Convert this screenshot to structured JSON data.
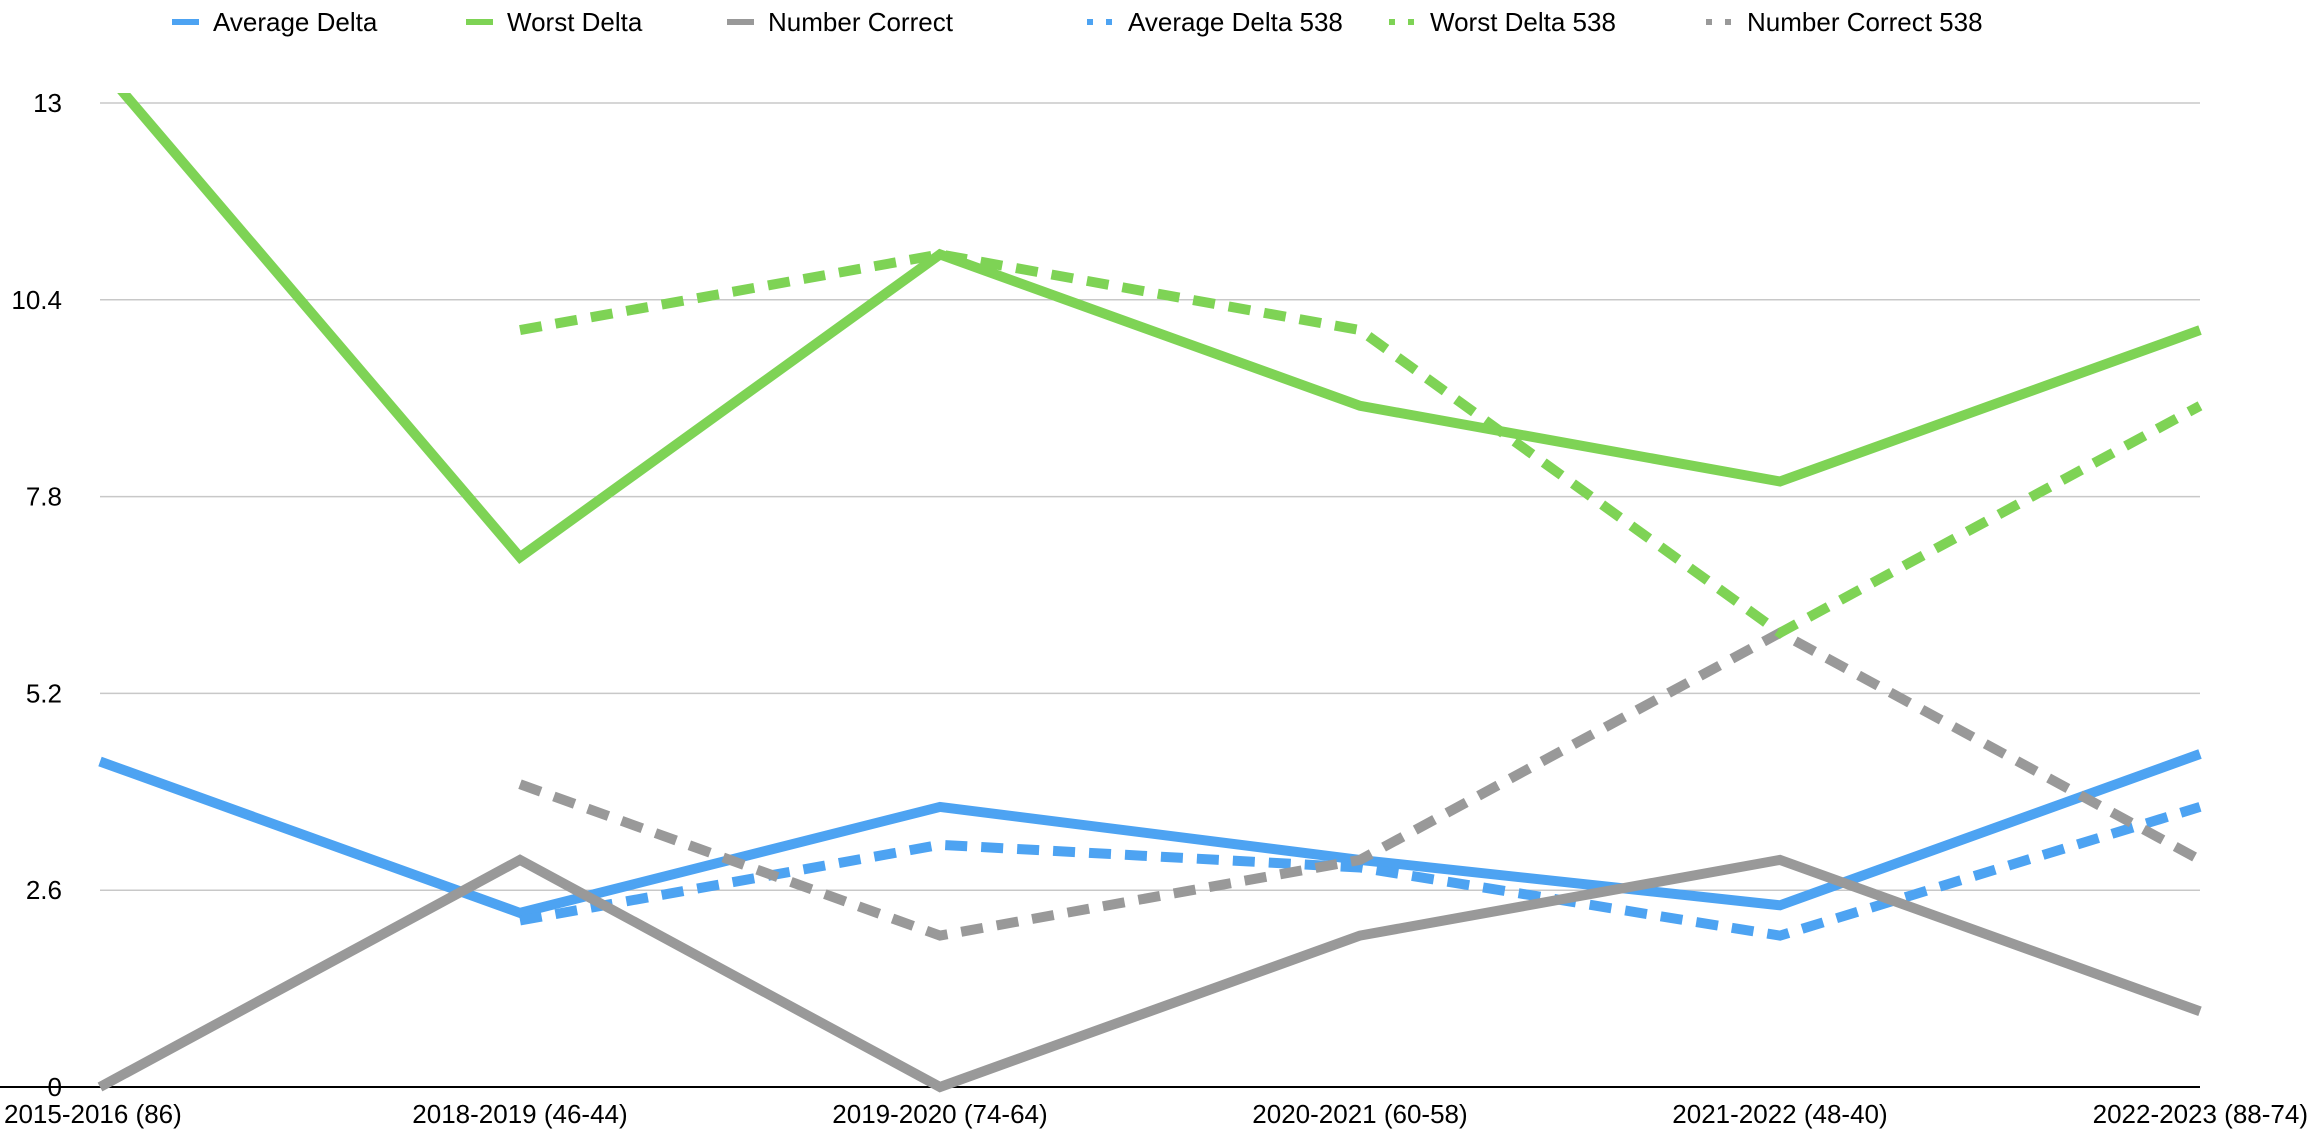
{
  "chart_data": {
    "type": "line",
    "title": "",
    "xlabel": "",
    "ylabel": "",
    "categories": [
      "2015-2016 (86)",
      "2018-2019 (46-44)",
      "2019-2020 (74-64)",
      "2020-2021 (60-58)",
      "2021-2022 (48-40)",
      "2022-2023 (88-74)"
    ],
    "ylim": [
      0,
      13
    ],
    "yticks": [
      "0",
      "2.6",
      "5.2",
      "7.8",
      "10.4",
      "13"
    ],
    "grid": true,
    "legend_position": "top",
    "series": [
      {
        "name": "Average Delta",
        "style": "solid",
        "color": "#4DA3F2",
        "values": [
          4.3,
          2.3,
          3.7,
          3.0,
          2.4,
          4.4
        ]
      },
      {
        "name": "Worst Delta",
        "style": "solid",
        "color": "#7ED355",
        "values": [
          13.5,
          7.0,
          11.0,
          9.0,
          8.0,
          10.0
        ]
      },
      {
        "name": "Number Correct",
        "style": "solid",
        "color": "#999999",
        "values": [
          0,
          3,
          0,
          2,
          3,
          1
        ]
      },
      {
        "name": "Average Delta 538",
        "style": "dashed",
        "color": "#4DA3F2",
        "values": [
          null,
          2.2,
          3.2,
          2.9,
          2.0,
          3.7
        ]
      },
      {
        "name": "Worst Delta 538",
        "style": "dashed",
        "color": "#7ED355",
        "values": [
          null,
          10.0,
          11.0,
          10.0,
          6.0,
          9.0
        ]
      },
      {
        "name": "Number Correct 538",
        "style": "dashed",
        "color": "#999999",
        "values": [
          null,
          4,
          2,
          3,
          6,
          3
        ]
      }
    ]
  }
}
